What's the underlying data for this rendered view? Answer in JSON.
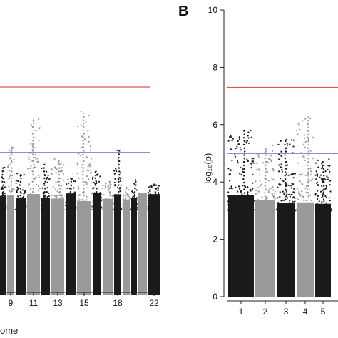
{
  "colors": {
    "dark": "#1a1a1a",
    "grey": "#9a9a9a",
    "red_line": "#d9534f",
    "blue_line": "#4a4ab8",
    "axis": "#222222"
  },
  "chart_data": [
    {
      "type": "scatter",
      "panel_label": "",
      "xlabel": "ome",
      "ylabel": "",
      "x_tick_labels": [
        {
          "label": "9",
          "chromosome": 9
        },
        {
          "label": "11",
          "chromosome": 11
        },
        {
          "label": "13",
          "chromosome": 13
        },
        {
          "label": "15",
          "chromosome": 15
        },
        {
          "label": "18",
          "chromosome": 18
        },
        {
          "label": "22",
          "chromosome": 22
        }
      ],
      "ylim": [
        0,
        10
      ],
      "thresholds": {
        "genome_wide": 7.3,
        "suggestive": 5.0
      },
      "chromosome_blocks": [
        {
          "chromosome": 8,
          "color": "dark",
          "max": 4.5
        },
        {
          "chromosome": 9,
          "color": "grey",
          "max": 5.2
        },
        {
          "chromosome": 10,
          "color": "dark",
          "max": 4.3
        },
        {
          "chromosome": 11,
          "color": "grey",
          "max": 6.2
        },
        {
          "chromosome": 12,
          "color": "dark",
          "max": 4.6
        },
        {
          "chromosome": 13,
          "color": "grey",
          "max": 4.8
        },
        {
          "chromosome": 14,
          "color": "dark",
          "max": 4.2
        },
        {
          "chromosome": 15,
          "color": "grey",
          "max": 6.5
        },
        {
          "chromosome": 16,
          "color": "dark",
          "max": 4.4
        },
        {
          "chromosome": 17,
          "color": "grey",
          "max": 4.0
        },
        {
          "chromosome": 18,
          "color": "dark",
          "max": 5.1
        },
        {
          "chromosome": 19,
          "color": "grey",
          "max": 3.8
        },
        {
          "chromosome": 20,
          "color": "dark",
          "max": 4.1
        },
        {
          "chromosome": 21,
          "color": "grey",
          "max": 3.6
        },
        {
          "chromosome": 22,
          "color": "dark",
          "max": 3.9
        }
      ]
    },
    {
      "type": "scatter",
      "panel_label": "B",
      "xlabel": "",
      "ylabel": "−log₁₀(p)",
      "x_tick_labels": [
        {
          "label": "1",
          "chromosome": 1
        },
        {
          "label": "2",
          "chromosome": 2
        },
        {
          "label": "3",
          "chromosome": 3
        },
        {
          "label": "4",
          "chromosome": 4
        },
        {
          "label": "5",
          "chromosome": 5
        }
      ],
      "y_ticks": [
        0,
        2,
        4,
        6,
        8,
        10
      ],
      "ylim": [
        0,
        10
      ],
      "thresholds": {
        "genome_wide": 7.3,
        "suggestive": 5.0
      },
      "chromosome_blocks": [
        {
          "chromosome": 1,
          "color": "dark",
          "max": 5.8
        },
        {
          "chromosome": 2,
          "color": "grey",
          "max": 5.3
        },
        {
          "chromosome": 3,
          "color": "dark",
          "max": 5.5
        },
        {
          "chromosome": 4,
          "color": "grey",
          "max": 6.3
        },
        {
          "chromosome": 5,
          "color": "dark",
          "max": 4.8
        }
      ]
    }
  ]
}
